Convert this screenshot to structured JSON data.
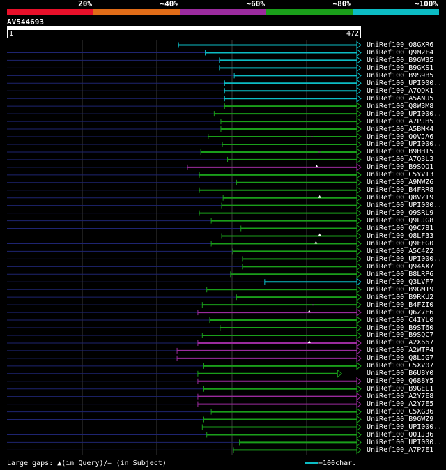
{
  "legend": {
    "colors": [
      "#e8102a",
      "#e06c18",
      "#9b2b9e",
      "#1a9e1a",
      "#0cbcc4"
    ],
    "labels": [
      "20%",
      "~40%",
      "~60%",
      "~80%",
      "~100%"
    ]
  },
  "query": {
    "id": "AV544693",
    "start": "1",
    "end": "472",
    "length": 472
  },
  "hits": [
    {
      "name": "UniRef100_Q8GXR6",
      "start": 232,
      "color": "#0cbcc4"
    },
    {
      "name": "UniRef100_Q9M2F4",
      "start": 268,
      "color": "#0cbcc4"
    },
    {
      "name": "UniRef100_B9GW35",
      "start": 287,
      "color": "#0cbcc4"
    },
    {
      "name": "UniRef100_B9GKS1",
      "start": 287,
      "color": "#0cbcc4"
    },
    {
      "name": "UniRef100_B9S9B5",
      "start": 307,
      "color": "#0cbcc4"
    },
    {
      "name": "UniRef100_UPI000..",
      "start": 294,
      "color": "#0cbcc4"
    },
    {
      "name": "UniRef100_A7QDK1",
      "start": 294,
      "color": "#0cbcc4"
    },
    {
      "name": "UniRef100_A5ANU5",
      "start": 294,
      "color": "#0cbcc4"
    },
    {
      "name": "UniRef100_Q8W3M8",
      "start": 294,
      "color": "#1a9e1a"
    },
    {
      "name": "UniRef100_UPI000..",
      "start": 280,
      "color": "#1a9e1a"
    },
    {
      "name": "UniRef100_A7PJH5",
      "start": 289,
      "color": "#1a9e1a"
    },
    {
      "name": "UniRef100_A5BMK4",
      "start": 289,
      "color": "#1a9e1a"
    },
    {
      "name": "UniRef100_Q0VJA6",
      "start": 272,
      "color": "#1a9e1a",
      "gap": 410
    },
    {
      "name": "UniRef100_UPI000..",
      "start": 291,
      "color": "#1a9e1a"
    },
    {
      "name": "UniRef100_B9HHT5",
      "start": 262,
      "color": "#1a9e1a",
      "gap": 420
    },
    {
      "name": "UniRef100_A7Q3L3",
      "start": 298,
      "color": "#1a9e1a"
    },
    {
      "name": "UniRef100_B9SQQ1",
      "start": 244,
      "color": "#9b2b9e",
      "tri": 418
    },
    {
      "name": "UniRef100_C5YVI3",
      "start": 260,
      "color": "#1a9e1a"
    },
    {
      "name": "UniRef100_A9NWZ6",
      "start": 310,
      "color": "#1a9e1a"
    },
    {
      "name": "UniRef100_B4FRR8",
      "start": 260,
      "color": "#1a9e1a"
    },
    {
      "name": "UniRef100_Q8VZI9",
      "start": 292,
      "color": "#1a9e1a",
      "tri": 422
    },
    {
      "name": "UniRef100_UPI000..",
      "start": 290,
      "color": "#1a9e1a"
    },
    {
      "name": "UniRef100_Q9SRL9",
      "start": 260,
      "color": "#1a9e1a"
    },
    {
      "name": "UniRef100_Q9LJG8",
      "start": 276,
      "color": "#1a9e1a"
    },
    {
      "name": "UniRef100_Q9C781",
      "start": 316,
      "color": "#1a9e1a"
    },
    {
      "name": "UniRef100_Q8LF33",
      "start": 290,
      "color": "#1a9e1a",
      "tri": 422
    },
    {
      "name": "UniRef100_Q9FFG0",
      "start": 276,
      "color": "#1a9e1a",
      "tri": 417
    },
    {
      "name": "UniRef100_A5C4Z2",
      "start": 305,
      "color": "#1a9e1a"
    },
    {
      "name": "UniRef100_UPI000..",
      "start": 318,
      "color": "#1a9e1a"
    },
    {
      "name": "UniRef100_Q94AX7",
      "start": 318,
      "color": "#1a9e1a"
    },
    {
      "name": "UniRef100_B8LRP6",
      "start": 302,
      "color": "#1a9e1a"
    },
    {
      "name": "UniRef100_Q3LVF7",
      "start": 348,
      "color": "#0cbcc4"
    },
    {
      "name": "UniRef100_B9GM19",
      "start": 270,
      "color": "#1a9e1a"
    },
    {
      "name": "UniRef100_B9RKU2",
      "start": 310,
      "color": "#1a9e1a"
    },
    {
      "name": "UniRef100_B4FZI0",
      "start": 264,
      "color": "#1a9e1a",
      "gap": 412
    },
    {
      "name": "UniRef100_Q6Z7E6",
      "start": 258,
      "color": "#9b2b9e",
      "tri": 408
    },
    {
      "name": "UniRef100_C4IYL0",
      "start": 274,
      "color": "#1a9e1a"
    },
    {
      "name": "UniRef100_B9ST60",
      "start": 288,
      "color": "#1a9e1a"
    },
    {
      "name": "UniRef100_B9SQC7",
      "start": 264,
      "color": "#1a9e1a"
    },
    {
      "name": "UniRef100_A2X667",
      "start": 258,
      "color": "#9b2b9e",
      "tri": 408
    },
    {
      "name": "UniRef100_A2WTP4",
      "start": 230,
      "color": "#9b2b9e"
    },
    {
      "name": "UniRef100_Q8LJG7",
      "start": 230,
      "color": "#9b2b9e"
    },
    {
      "name": "UniRef100_C5XV07",
      "start": 266,
      "color": "#1a9e1a"
    },
    {
      "name": "UniRef100_B6U8Y0",
      "start": 258,
      "end": 446,
      "color": "#1a9e1a"
    },
    {
      "name": "UniRef100_Q688Y5",
      "start": 258,
      "color": "#9b2b9e"
    },
    {
      "name": "UniRef100_B9GEL1",
      "start": 266,
      "color": "#1a9e1a"
    },
    {
      "name": "UniRef100_A2Y7E8",
      "start": 258,
      "color": "#9b2b9e"
    },
    {
      "name": "UniRef100_A2Y7E5",
      "start": 258,
      "color": "#9b2b9e"
    },
    {
      "name": "UniRef100_C5XG36",
      "start": 276,
      "color": "#1a9e1a"
    },
    {
      "name": "UniRef100_B9GWZ9",
      "start": 266,
      "color": "#1a9e1a"
    },
    {
      "name": "UniRef100_UPI000..",
      "start": 264,
      "color": "#1a9e1a"
    },
    {
      "name": "UniRef100_Q01J36",
      "start": 270,
      "color": "#1a9e1a"
    },
    {
      "name": "UniRef100_UPI000..",
      "start": 314,
      "color": "#1a9e1a"
    },
    {
      "name": "UniRef100_A7P7E1",
      "start": 306,
      "color": "#1a9e1a"
    }
  ],
  "footer": {
    "gaps_label": "Large gaps:",
    "query_gap": "(in Query)/",
    "subject_gap": "(in Subject)",
    "scale_text": "=100char."
  }
}
